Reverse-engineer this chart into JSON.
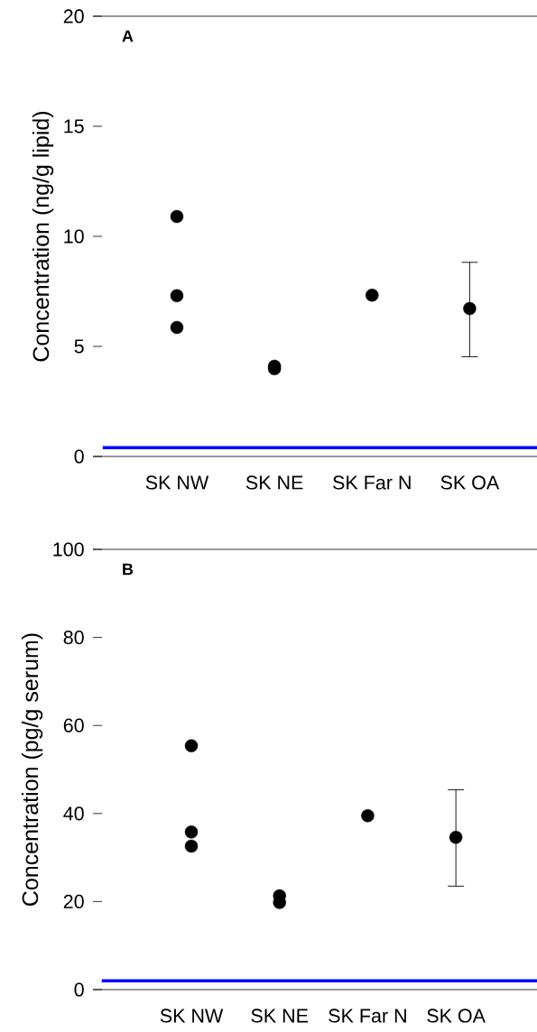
{
  "chart_data": [
    {
      "type": "scatter",
      "annotations": [
        "A"
      ],
      "categories": [
        "SK NW",
        "SK NE",
        "SK Far N",
        "SK OA"
      ],
      "ylabel": "Concentration (ng/g lipid)",
      "ylim": [
        0,
        20
      ],
      "yticks": [
        0,
        5,
        10,
        15,
        20
      ],
      "marker": "circle",
      "series": [
        {
          "color": "#000000",
          "values": [
            10.9,
            3.99,
            7.33,
            null
          ]
        },
        {
          "color": "#000000",
          "values": [
            7.3,
            4.1,
            null,
            null
          ]
        },
        {
          "color": "#000000",
          "values": [
            5.86,
            null,
            null,
            null
          ]
        },
        {
          "color": "#000000",
          "values": [
            null,
            null,
            null,
            6.72
          ],
          "errors": [
            null,
            null,
            null,
            [
              4.53,
              8.82
            ]
          ]
        }
      ],
      "ref_lines": [
        {
          "axis": "y",
          "value": 0.4,
          "color": "#0000ff"
        }
      ]
    },
    {
      "type": "scatter",
      "annotations": [
        "B"
      ],
      "categories": [
        "SK NW",
        "SK NE",
        "SK Far N",
        "SK OA"
      ],
      "ylabel": "Concentration (pg/g serum)",
      "ylim": [
        0,
        100
      ],
      "yticks": [
        0,
        20,
        40,
        60,
        80,
        100
      ],
      "marker": "circle",
      "series": [
        {
          "color": "#000000",
          "values": [
            55.4,
            21.3,
            39.5,
            null
          ]
        },
        {
          "color": "#000000",
          "values": [
            35.8,
            19.8,
            null,
            null
          ]
        },
        {
          "color": "#000000",
          "values": [
            32.6,
            null,
            null,
            null
          ]
        },
        {
          "color": "#000000",
          "values": [
            null,
            null,
            null,
            34.6
          ],
          "errors": [
            null,
            null,
            null,
            [
              23.5,
              45.4
            ]
          ]
        }
      ],
      "ref_lines": [
        {
          "axis": "y",
          "value": 2,
          "color": "#0000ff"
        }
      ]
    }
  ]
}
